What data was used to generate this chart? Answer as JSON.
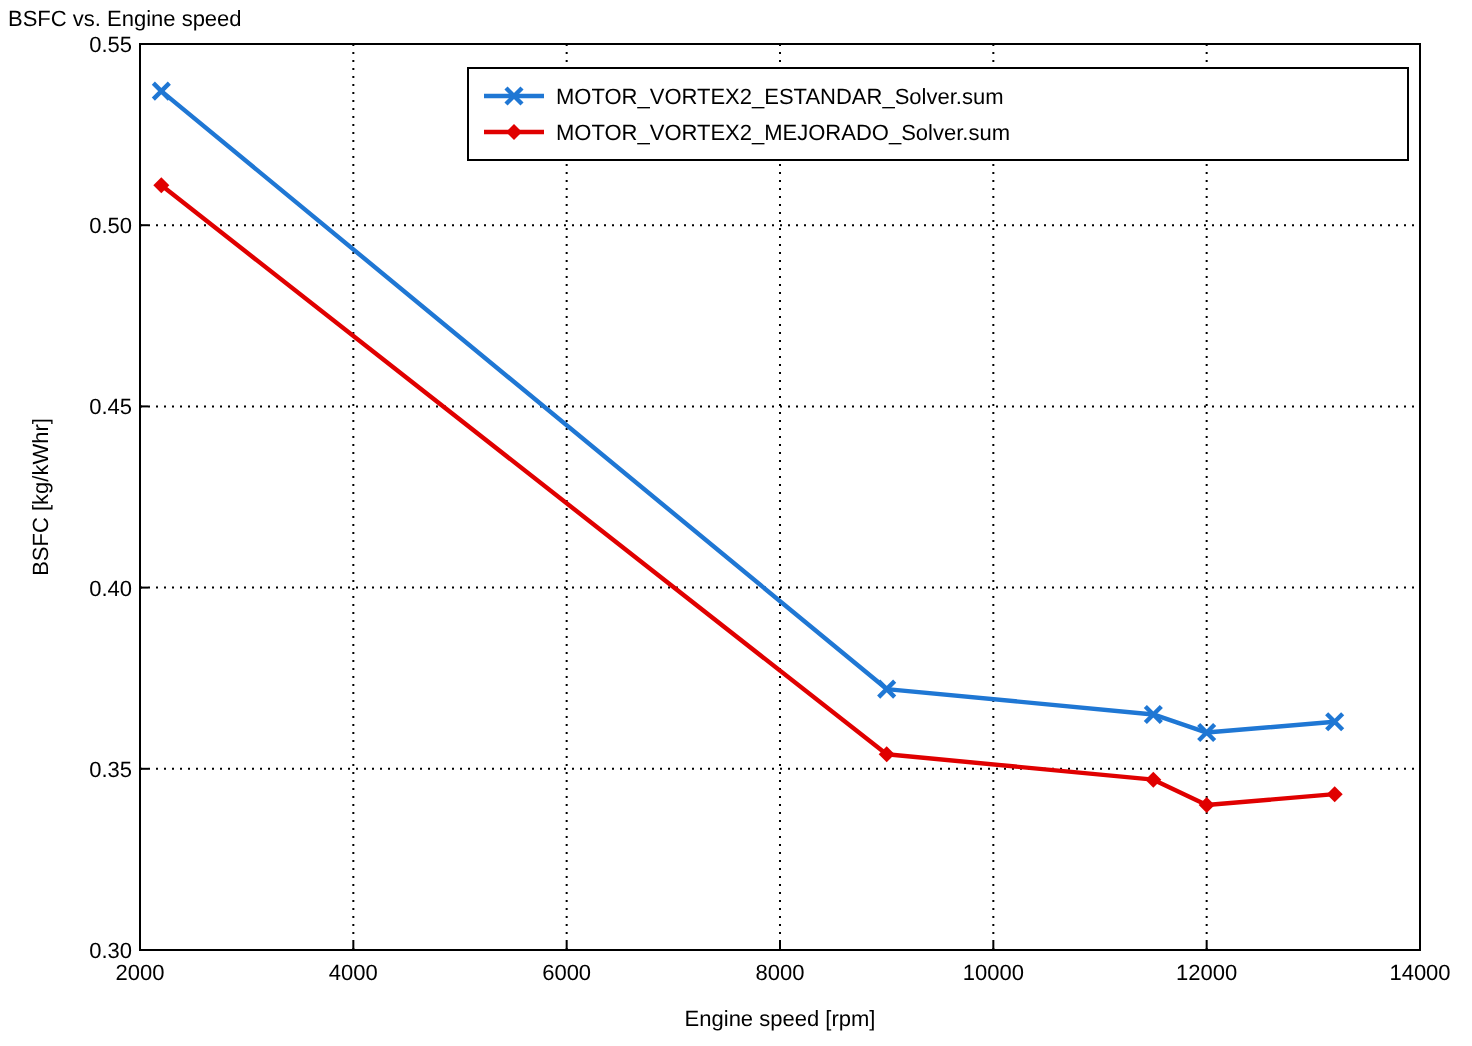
{
  "chart_data": {
    "type": "line",
    "title": "BSFC vs. Engine speed",
    "xlabel": "Engine speed  [rpm]",
    "ylabel": "BSFC  [kg/kWhr]",
    "xlim": [
      2000,
      14000
    ],
    "xticks": [
      2000,
      4000,
      6000,
      8000,
      10000,
      12000,
      14000
    ],
    "ylim": [
      0.3,
      0.55
    ],
    "yticks": [
      {
        "value": 0.3,
        "label": "0.30"
      },
      0.35,
      {
        "value": 0.4,
        "label": "0.40"
      },
      0.45,
      {
        "value": 0.5,
        "label": "0.50"
      },
      0.55
    ],
    "grid": true,
    "legend": "top right",
    "line_style": "solid",
    "x": [
      2200,
      9000,
      11500,
      12000,
      13200
    ],
    "series": [
      {
        "name": "MOTOR_VORTEX2_ESTANDAR_Solver.sum",
        "color": "#1f77d4",
        "marker": "cross",
        "values": [
          0.537,
          0.372,
          0.365,
          0.36,
          0.363
        ]
      },
      {
        "name": "MOTOR_VORTEX2_MEJORADO_Solver.sum",
        "color": "#e00000",
        "marker": "diamond",
        "values": [
          0.511,
          0.354,
          0.347,
          0.34,
          0.343
        ]
      }
    ]
  }
}
